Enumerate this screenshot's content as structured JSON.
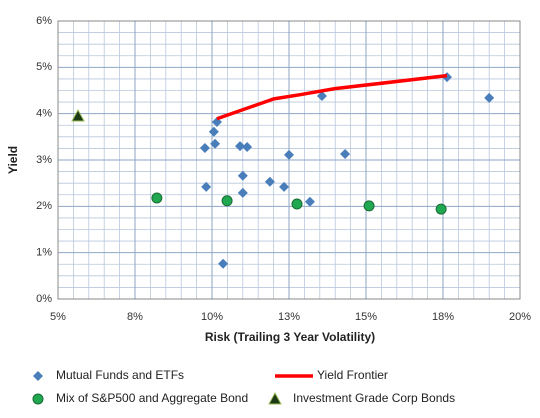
{
  "chart_data": {
    "type": "scatter",
    "xlabel": "Risk (Trailing 3 Year Volatility)",
    "ylabel": "Yield",
    "xlim": [
      5,
      20
    ],
    "xticks": [
      {
        "value": 5,
        "label": "5%"
      },
      {
        "value": 7.5,
        "label": "8%"
      },
      {
        "value": 10,
        "label": "10%"
      },
      {
        "value": 12.5,
        "label": "13%"
      },
      {
        "value": 15,
        "label": "15%"
      },
      {
        "value": 17.5,
        "label": "18%"
      },
      {
        "value": 20,
        "label": "20%"
      }
    ],
    "ylim": [
      0,
      6
    ],
    "yticks": [
      {
        "value": 0,
        "label": "0%"
      },
      {
        "value": 1,
        "label": "1%"
      },
      {
        "value": 2,
        "label": "2%"
      },
      {
        "value": 3,
        "label": "3%"
      },
      {
        "value": 4,
        "label": "4%"
      },
      {
        "value": 5,
        "label": "5%"
      },
      {
        "value": 6,
        "label": "6%"
      }
    ],
    "grid": true,
    "series": [
      {
        "name": "Mutual Funds and ETFs",
        "color": "#4a7ebb",
        "marker": "diamond",
        "x": [
          10.16,
          10.06,
          10.1,
          9.77,
          10.91,
          11.14,
          12.5,
          14.32,
          13.57,
          17.63,
          19.0,
          9.81,
          11.0,
          11.88,
          12.34,
          11.0,
          13.18,
          10.36
        ],
        "values": [
          3.82,
          3.61,
          3.35,
          3.26,
          3.3,
          3.28,
          3.11,
          3.13,
          4.38,
          4.79,
          4.34,
          2.42,
          2.66,
          2.53,
          2.42,
          2.29,
          2.1,
          0.76
        ]
      },
      {
        "name": "Yield Frontier",
        "color": "#ff0000",
        "marker": "line",
        "x": [
          10.16,
          12.01,
          12.86,
          13.99,
          17.63
        ],
        "values": [
          3.89,
          4.32,
          4.41,
          4.54,
          4.82
        ]
      },
      {
        "name": "Mix of S&P500 and Aggregate Bond",
        "color": "#1fa84f",
        "marker": "circle",
        "x": [
          8.21,
          10.49,
          12.76,
          15.1,
          17.44
        ],
        "values": [
          2.18,
          2.12,
          2.05,
          2.01,
          1.94
        ]
      },
      {
        "name": "Investment Grade Corp Bonds",
        "color": "#1b3a14",
        "marker": "triangle",
        "x": [
          5.65
        ],
        "values": [
          3.95
        ]
      }
    ]
  }
}
